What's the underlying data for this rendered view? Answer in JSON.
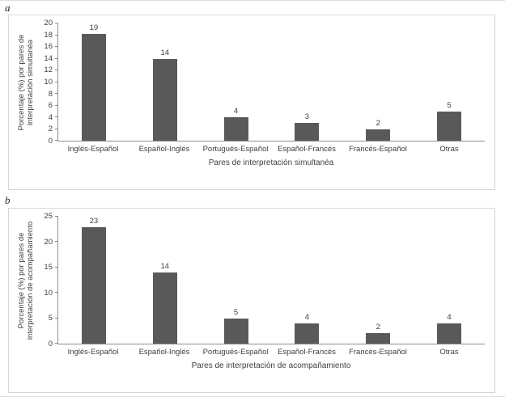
{
  "colors": {
    "bar": "#595959",
    "axis": "#8c8c8c",
    "panel_border": "#d6d6d6",
    "text": "#404040"
  },
  "panels": [
    {
      "label": "a"
    },
    {
      "label": "b"
    }
  ],
  "chart_data": [
    {
      "type": "bar",
      "panel": "a",
      "title": "",
      "categories": [
        "Inglés-Español",
        "Español-Inglés",
        "Portugués-Español",
        "Español-Francés",
        "Francés-Español",
        "Otras"
      ],
      "values": [
        19,
        14,
        4,
        3,
        2,
        5
      ],
      "xlabel": "Pares de interpretación simultanéa",
      "ylabel": "Porcentaje (%) por pares de interpretación simultanéa",
      "ylim": [
        0,
        20
      ],
      "ytick_step": 2,
      "grid": false,
      "legend": "none"
    },
    {
      "type": "bar",
      "panel": "b",
      "title": "",
      "categories": [
        "Inglés-Español",
        "Español-Inglés",
        "Portugués-Español",
        "Español-Francés",
        "Francés-Español",
        "Otras"
      ],
      "values": [
        23,
        14,
        5,
        4,
        2,
        4
      ],
      "xlabel": "Pares de interpretación de acompañamiento",
      "ylabel": "Porcentaje (%) por pares de interpretación de acompañamiento",
      "ylim": [
        0,
        25
      ],
      "ytick_step": 5,
      "grid": false,
      "legend": "none"
    }
  ]
}
